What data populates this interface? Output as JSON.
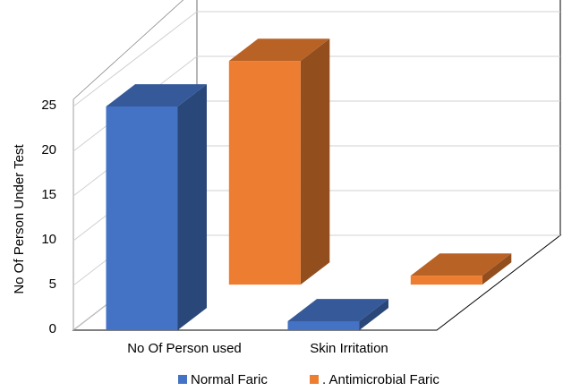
{
  "chart_data": {
    "type": "bar",
    "style": "3d-clustered-column",
    "categories": [
      "No Of Person used",
      "Skin Irritation"
    ],
    "series": [
      {
        "name": "Normal Faric",
        "values": [
          25,
          1
        ],
        "color": "#4472C4"
      },
      {
        "name": ". Antimicrobial Faric",
        "values": [
          25,
          1
        ],
        "color": "#ED7D31"
      }
    ],
    "ylabel": "No Of Person Under Test",
    "xlabel": "",
    "ylim": [
      0,
      25
    ],
    "yticks": [
      "0",
      "5",
      "10",
      "15",
      "20",
      "25"
    ],
    "grid": true,
    "legend_position": "bottom"
  }
}
